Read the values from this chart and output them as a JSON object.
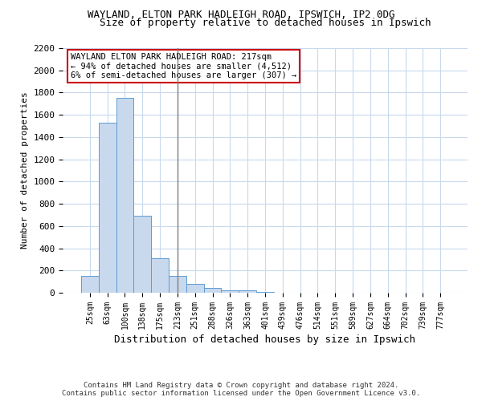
{
  "title": "WAYLAND, ELTON PARK HADLEIGH ROAD, IPSWICH, IP2 0DG",
  "subtitle": "Size of property relative to detached houses in Ipswich",
  "xlabel": "Distribution of detached houses by size in Ipswich",
  "ylabel": "Number of detached properties",
  "footer_line1": "Contains HM Land Registry data © Crown copyright and database right 2024.",
  "footer_line2": "Contains public sector information licensed under the Open Government Licence v3.0.",
  "annotation_line1": "WAYLAND ELTON PARK HADLEIGH ROAD: 217sqm",
  "annotation_line2": "← 94% of detached houses are smaller (4,512)",
  "annotation_line3": "6% of semi-detached houses are larger (307) →",
  "bar_color": "#c8d9ed",
  "bar_edge_color": "#5b9bd5",
  "highlight_line_color": "#808080",
  "annotation_box_color": "#ffffff",
  "annotation_box_edge": "#cc0000",
  "background_color": "#ffffff",
  "grid_color": "#c8d9ed",
  "categories": [
    "25sqm",
    "63sqm",
    "100sqm",
    "138sqm",
    "175sqm",
    "213sqm",
    "251sqm",
    "288sqm",
    "326sqm",
    "363sqm",
    "401sqm",
    "439sqm",
    "476sqm",
    "514sqm",
    "551sqm",
    "589sqm",
    "627sqm",
    "664sqm",
    "702sqm",
    "739sqm",
    "777sqm"
  ],
  "values": [
    155,
    1530,
    1750,
    690,
    310,
    155,
    80,
    40,
    25,
    20,
    10,
    0,
    0,
    0,
    0,
    0,
    0,
    0,
    0,
    0,
    0
  ],
  "ylim": [
    0,
    2200
  ],
  "yticks": [
    0,
    200,
    400,
    600,
    800,
    1000,
    1200,
    1400,
    1600,
    1800,
    2000,
    2200
  ],
  "highlight_index": 5,
  "figsize": [
    6.0,
    5.0
  ],
  "dpi": 100
}
